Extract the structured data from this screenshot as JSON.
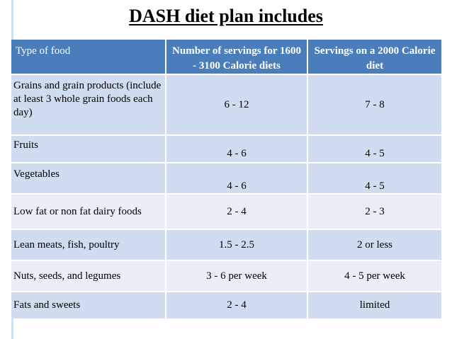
{
  "title": "DASH diet plan includes",
  "table": {
    "headers": [
      "Type of food",
      "Number of servings for 1600 - 3100 Calorie diets",
      "Servings on a 2000 Calorie diet"
    ],
    "rows": [
      [
        "Grains and grain products (include at least 3 whole grain foods each day)",
        "6 - 12",
        "7 - 8"
      ],
      [
        "Fruits",
        "4 - 6",
        "4 - 5"
      ],
      [
        "Vegetables",
        "4 - 6",
        "4 - 5"
      ],
      [
        "Low fat or non fat dairy foods",
        "2 - 4",
        "2 - 3"
      ],
      [
        "Lean meats, fish, poultry",
        "1.5 - 2.5",
        "2 or less"
      ],
      [
        "Nuts, seeds, and legumes",
        "3 - 6 per week",
        "4 - 5 per week"
      ],
      [
        "Fats and sweets",
        "2 - 4",
        "limited"
      ]
    ]
  },
  "colors": {
    "header_bg": "#4a7ebb",
    "row_dark": "#d0dcef",
    "row_light": "#e9eef7"
  }
}
